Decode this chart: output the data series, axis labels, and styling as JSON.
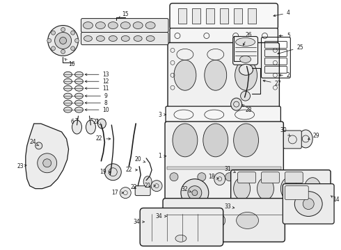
{
  "bg": "#ffffff",
  "lc": "#1a1a1a",
  "tc": "#1a1a1a",
  "fig_w": 4.9,
  "fig_h": 3.6,
  "dpi": 100
}
